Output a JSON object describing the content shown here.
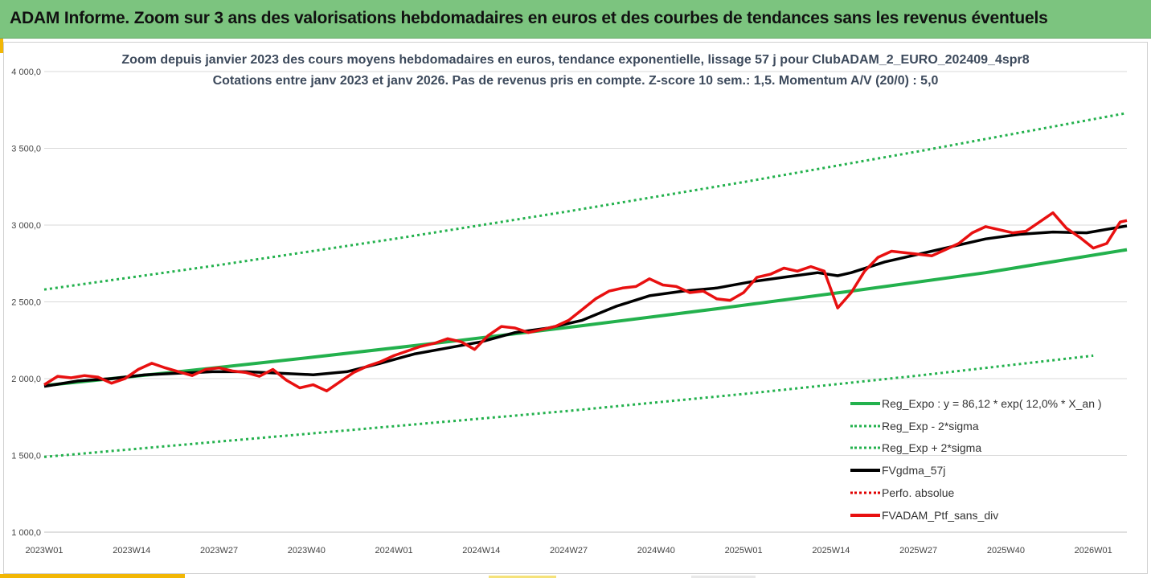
{
  "banner": {
    "title": "ADAM Informe. Zoom sur 3 ans des valorisations hebdomadaires en euros et des courbes de tendances sans les revenus éventuels"
  },
  "colors": {
    "banner": "#7cc47f",
    "trend": "#23b14d",
    "sigma": "#23b14d",
    "average": "#000000",
    "perf": "#e00000",
    "portfolio": "#e81010"
  },
  "chart_data": {
    "type": "line",
    "title": "Zoom depuis janvier 2023 des cours moyens hebdomadaires  en euros, tendance exponentielle, lissage 57 j pour ClubADAM_2_EURO_202409_4spr8",
    "subtitle": "Cotations entre janv 2023 et janv 2026. Pas de revenus pris en compte. Z-score 10 sem.: 1,5. Momentum  A/V (20/0) : 5,0",
    "ylim": [
      1000,
      4000
    ],
    "y_ticks": [
      1000,
      1500,
      2000,
      2500,
      3000,
      3500,
      4000
    ],
    "y_tick_labels": [
      "1 000,0",
      "1 500,0",
      "2 000,0",
      "2 500,0",
      "3 000,0",
      "3 500,0",
      "4 000,0"
    ],
    "x_range_weeks": [
      0,
      161
    ],
    "x_ticks": [
      0,
      13,
      26,
      39,
      52,
      65,
      78,
      91,
      104,
      117,
      130,
      143,
      156
    ],
    "x_tick_labels": [
      "2023W01",
      "2023W14",
      "2023W27",
      "2023W40",
      "2024W01",
      "2024W14",
      "2024W27",
      "2024W40",
      "2025W01",
      "2025W14",
      "2025W27",
      "2025W40",
      "2026W01"
    ],
    "legend": [
      "Reg_Expo : y = 86,12 * exp( 12,0% *  X_an )",
      "Reg_Exp - 2*sigma",
      "Reg_Exp + 2*sigma",
      "FVgdma_57j",
      "Perfo. absolue",
      "FVADAM_Ptf_sans_div"
    ],
    "series": [
      {
        "name": "Reg_Expo : y = 86,12 * exp( 12,0% *  X_an )",
        "style": "solid-green",
        "x": [
          0,
          20,
          40,
          60,
          80,
          100,
          120,
          140,
          161
        ],
        "values": [
          1955,
          2045,
          2140,
          2240,
          2345,
          2455,
          2570,
          2690,
          2840
        ]
      },
      {
        "name": "Reg_Exp - 2*sigma",
        "style": "dotted-green",
        "x": [
          0,
          26,
          52,
          78,
          104,
          130,
          156
        ],
        "values": [
          1490,
          1590,
          1690,
          1790,
          1900,
          2020,
          2150
        ]
      },
      {
        "name": "Reg_Exp + 2*sigma",
        "style": "dotted-green",
        "x": [
          0,
          26,
          52,
          78,
          104,
          130,
          161
        ],
        "values": [
          2580,
          2740,
          2910,
          3090,
          3280,
          3480,
          3730
        ]
      },
      {
        "name": "FVgdma_57j",
        "style": "solid-black",
        "x": [
          0,
          5,
          10,
          15,
          20,
          25,
          30,
          35,
          40,
          45,
          50,
          55,
          60,
          65,
          70,
          75,
          80,
          85,
          90,
          95,
          100,
          105,
          110,
          115,
          118,
          120,
          125,
          130,
          135,
          140,
          145,
          150,
          155,
          161
        ],
        "values": [
          1950,
          1985,
          2000,
          2025,
          2035,
          2045,
          2045,
          2035,
          2025,
          2045,
          2100,
          2160,
          2200,
          2240,
          2300,
          2330,
          2380,
          2470,
          2540,
          2570,
          2590,
          2630,
          2660,
          2690,
          2670,
          2690,
          2760,
          2810,
          2860,
          2910,
          2940,
          2955,
          2950,
          2995
        ]
      },
      {
        "name": "FVADAM_Ptf_sans_div",
        "style": "solid-red",
        "x": [
          0,
          2,
          4,
          6,
          8,
          10,
          12,
          14,
          16,
          18,
          20,
          22,
          24,
          26,
          28,
          30,
          32,
          34,
          36,
          38,
          40,
          42,
          44,
          46,
          48,
          50,
          52,
          54,
          56,
          58,
          60,
          62,
          64,
          66,
          68,
          70,
          72,
          74,
          76,
          78,
          80,
          82,
          84,
          86,
          88,
          90,
          92,
          94,
          96,
          98,
          100,
          102,
          104,
          106,
          108,
          110,
          112,
          114,
          116,
          118,
          120,
          122,
          124,
          126,
          128,
          130,
          132,
          134,
          136,
          138,
          140,
          142,
          144,
          146,
          148,
          150,
          152,
          154,
          156,
          158,
          160,
          161
        ],
        "values": [
          1960,
          2015,
          2005,
          2020,
          2010,
          1970,
          2000,
          2060,
          2100,
          2070,
          2045,
          2020,
          2060,
          2070,
          2050,
          2040,
          2015,
          2060,
          1990,
          1940,
          1960,
          1920,
          1980,
          2040,
          2080,
          2110,
          2150,
          2180,
          2210,
          2230,
          2260,
          2240,
          2190,
          2280,
          2340,
          2330,
          2300,
          2320,
          2340,
          2380,
          2450,
          2520,
          2570,
          2590,
          2600,
          2650,
          2610,
          2600,
          2560,
          2570,
          2520,
          2510,
          2560,
          2660,
          2680,
          2720,
          2700,
          2730,
          2700,
          2460,
          2560,
          2700,
          2790,
          2830,
          2820,
          2810,
          2800,
          2840,
          2880,
          2950,
          2990,
          2970,
          2950,
          2960,
          3020,
          3080,
          2980,
          2920,
          2850,
          2880,
          3020,
          3030
        ]
      }
    ]
  }
}
